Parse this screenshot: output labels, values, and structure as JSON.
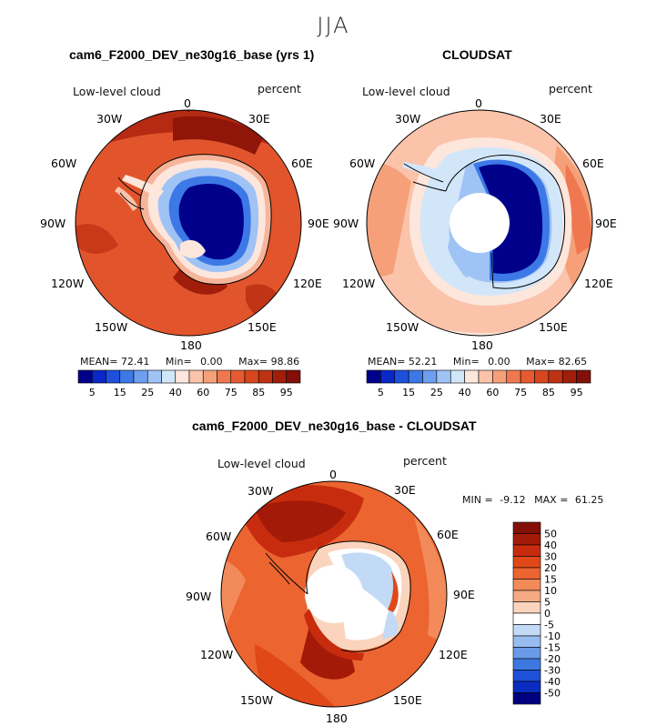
{
  "season": "JJA",
  "variable_label": "Low-level cloud",
  "units": "percent",
  "panels": [
    {
      "title": "cam6_F2000_DEV_ne30g16_base (yrs 1)",
      "mean": "72.41",
      "min": "0.00",
      "max": "98.86"
    },
    {
      "title": "CLOUDSAT",
      "mean": "52.21",
      "min": "0.00",
      "max": "82.65"
    },
    {
      "title": "cam6_F2000_DEV_ne30g16_base - CLOUDSAT",
      "min": "-9.12",
      "max": "61.25"
    }
  ],
  "stat_labels": {
    "mean": "MEAN=",
    "min": "Min=",
    "max": "Max=",
    "min_diff": "MIN =",
    "max_diff": "MAX ="
  },
  "longitude_labels": [
    "0",
    "30E",
    "60E",
    "90E",
    "120E",
    "150E",
    "180",
    "150W",
    "120W",
    "90W",
    "60W",
    "30W"
  ],
  "colorbar_abs": {
    "colors": [
      "#00008b",
      "#0a28c8",
      "#1e50dc",
      "#3c78e6",
      "#6e9ef0",
      "#a0c3f5",
      "#d2e6fa",
      "#fde6dc",
      "#fac3aa",
      "#f5a078",
      "#f07850",
      "#e65a32",
      "#d7461e",
      "#be3214",
      "#a01e0a",
      "#821008"
    ],
    "tick_labels": [
      "5",
      "15",
      "25",
      "40",
      "60",
      "75",
      "85",
      "95"
    ]
  },
  "colorbar_diff": {
    "colors": [
      "#821008",
      "#a41a08",
      "#c82c0e",
      "#e04818",
      "#ec6430",
      "#f28a5a",
      "#f6aa84",
      "#fbd4be",
      "#ffffff",
      "#c2daf6",
      "#96bcf0",
      "#6a9ae8",
      "#3c78e0",
      "#1e50d8",
      "#0a2cc0",
      "#000080"
    ],
    "tick_labels": [
      "50",
      "40",
      "30",
      "20",
      "15",
      "10",
      "5",
      "0",
      "-5",
      "-10",
      "-15",
      "-20",
      "-30",
      "-40",
      "-50"
    ]
  }
}
